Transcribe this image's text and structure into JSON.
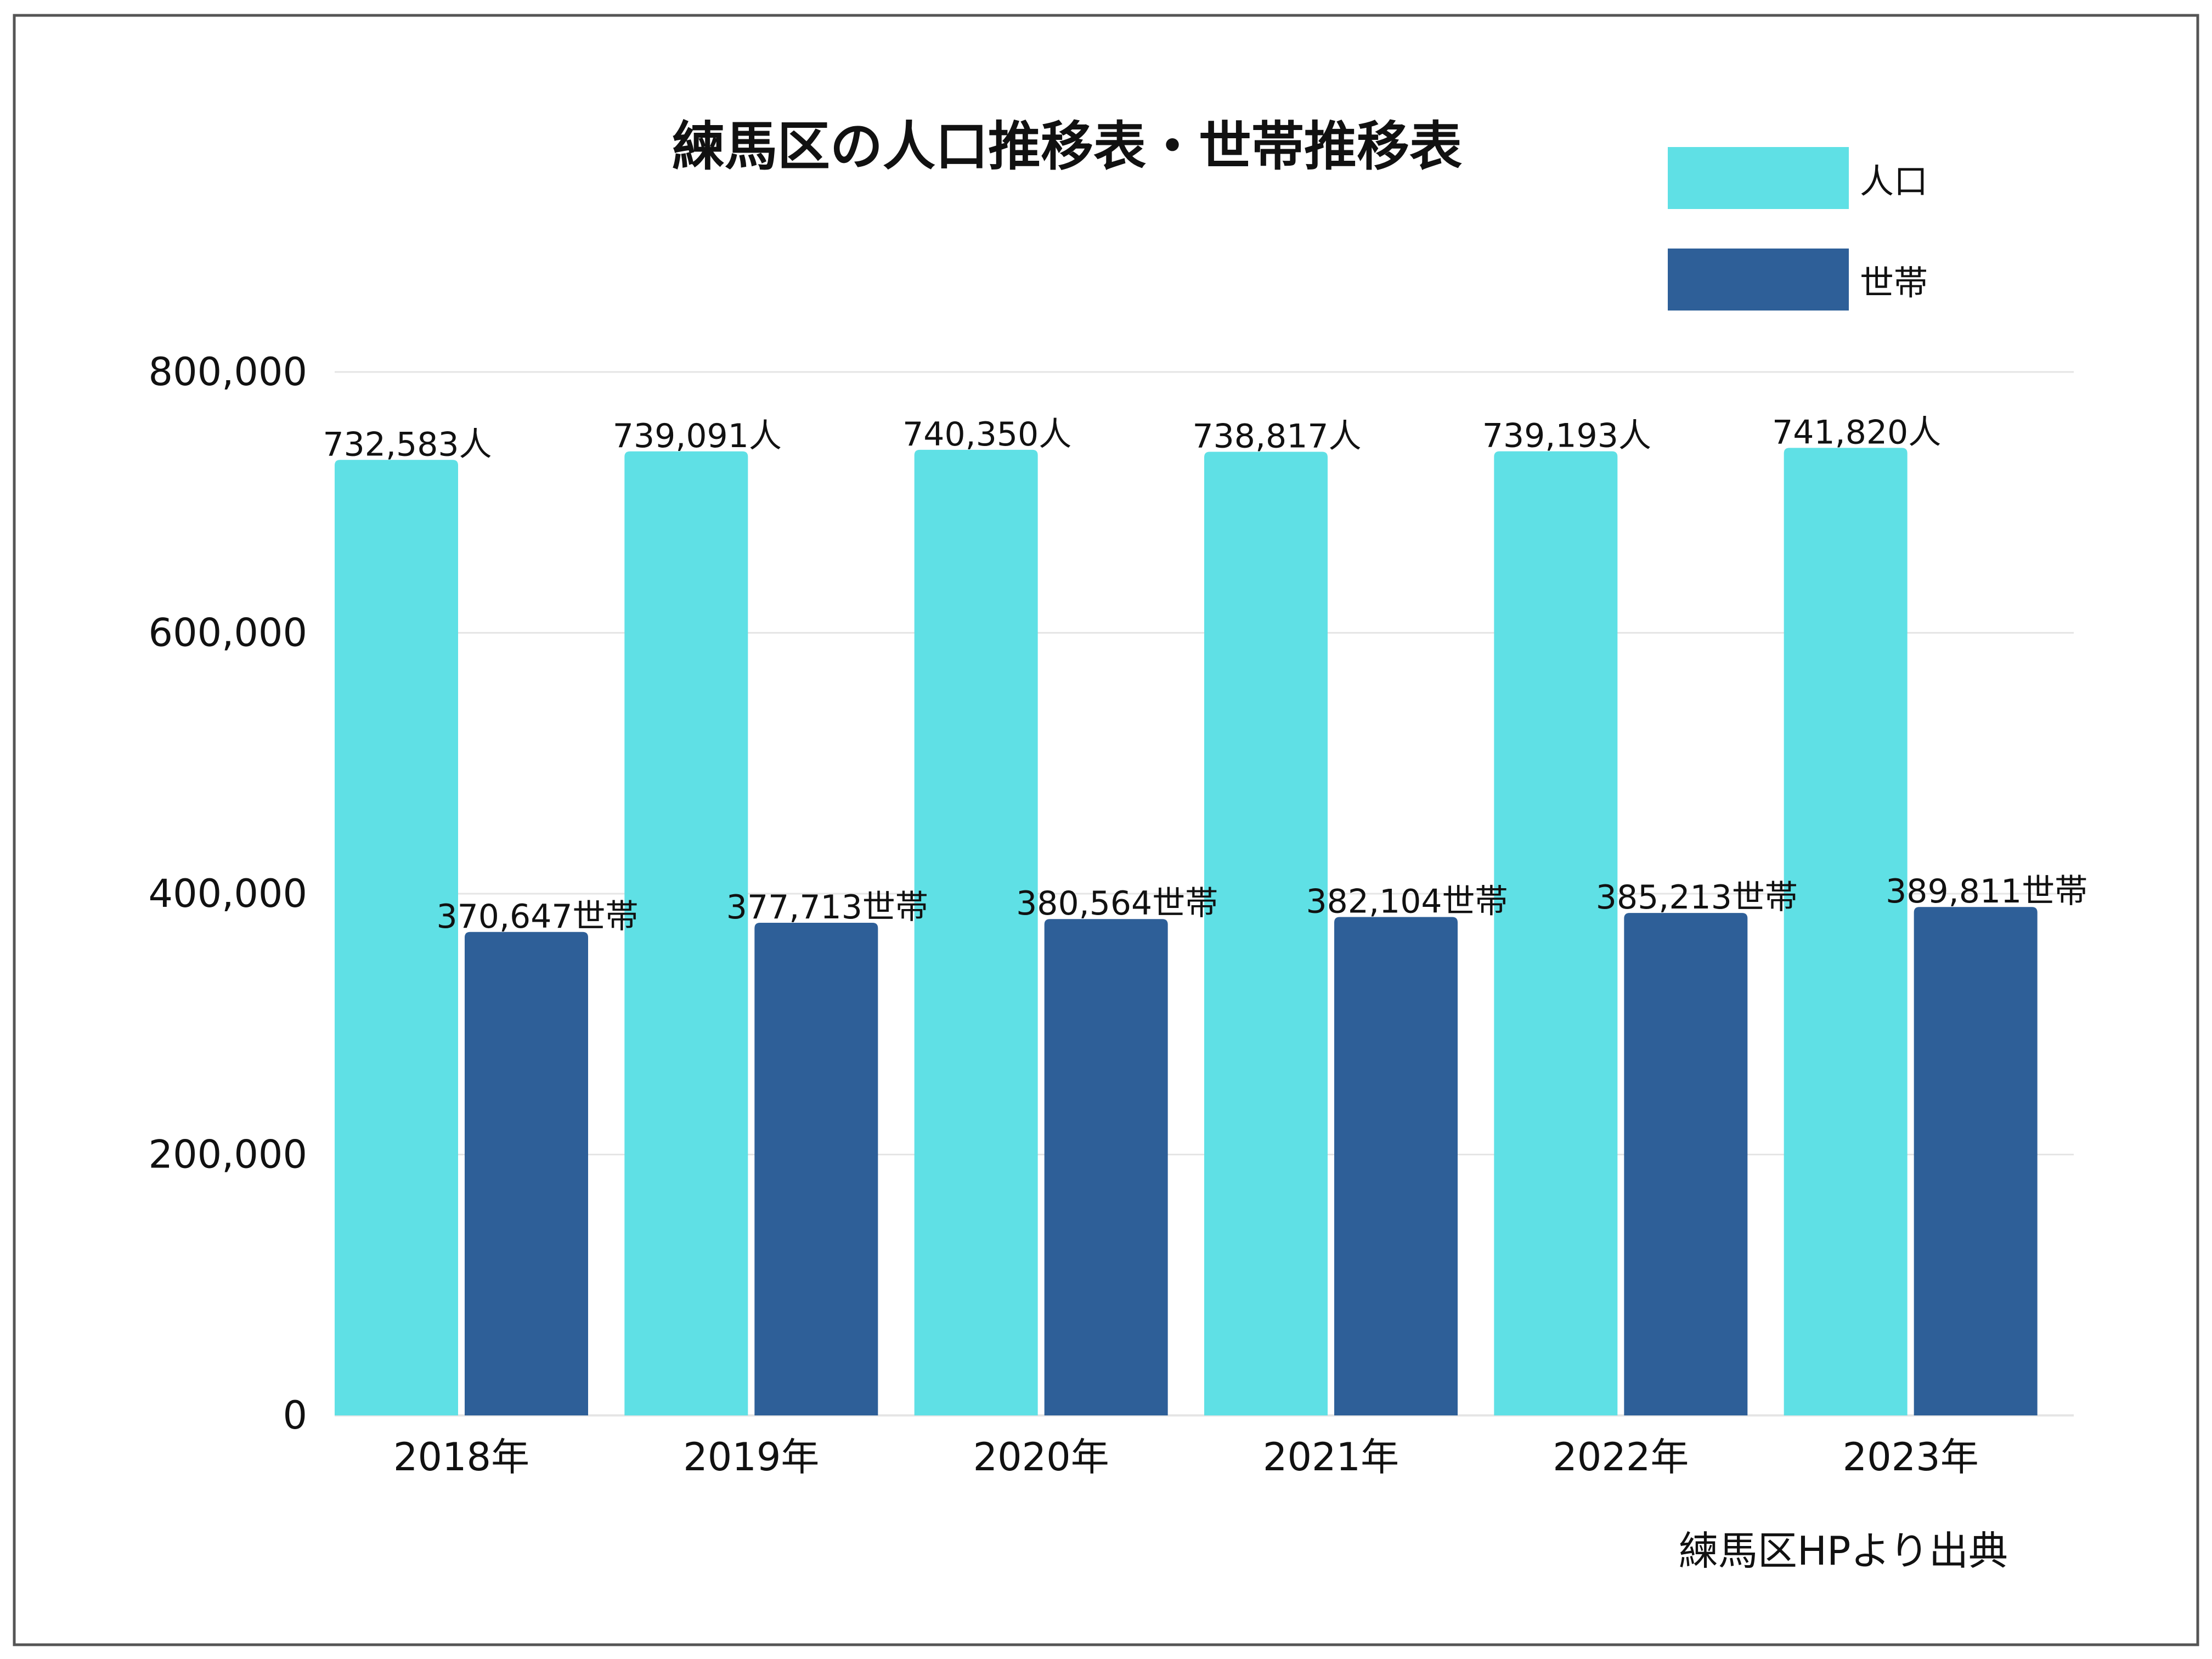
{
  "colors": {
    "population": "#5fe0e5",
    "households": "#2e5f98",
    "frame": "#555555",
    "grid": "#e5e5e5",
    "text": "#111111"
  },
  "chart_data": {
    "type": "bar",
    "title": "練馬区の人口推移表・世帯推移表",
    "categories": [
      "2018年",
      "2019年",
      "2020年",
      "2021年",
      "2022年",
      "2023年"
    ],
    "series": [
      {
        "name": "人口",
        "values": [
          732583,
          739091,
          740350,
          738817,
          739193,
          741820
        ],
        "labels": [
          "732,583人",
          "739,091人",
          "740,350人",
          "738,817人",
          "739,193人",
          "741,820人"
        ]
      },
      {
        "name": "世帯",
        "values": [
          370647,
          377713,
          380564,
          382104,
          385213,
          389811
        ],
        "labels": [
          "370,647世帯",
          "377,713世帯",
          "380,564世帯",
          "382,104世帯",
          "385,213世帯",
          "389,811世帯"
        ]
      }
    ],
    "ylim": [
      0,
      800000
    ],
    "yticks": [
      0,
      200000,
      400000,
      600000,
      800000
    ],
    "ytick_labels": [
      "0",
      "200,000",
      "400,000",
      "600,000",
      "800,000"
    ],
    "grid": true,
    "legend_position": "top-right",
    "source_note": "練馬区HPより出典"
  }
}
